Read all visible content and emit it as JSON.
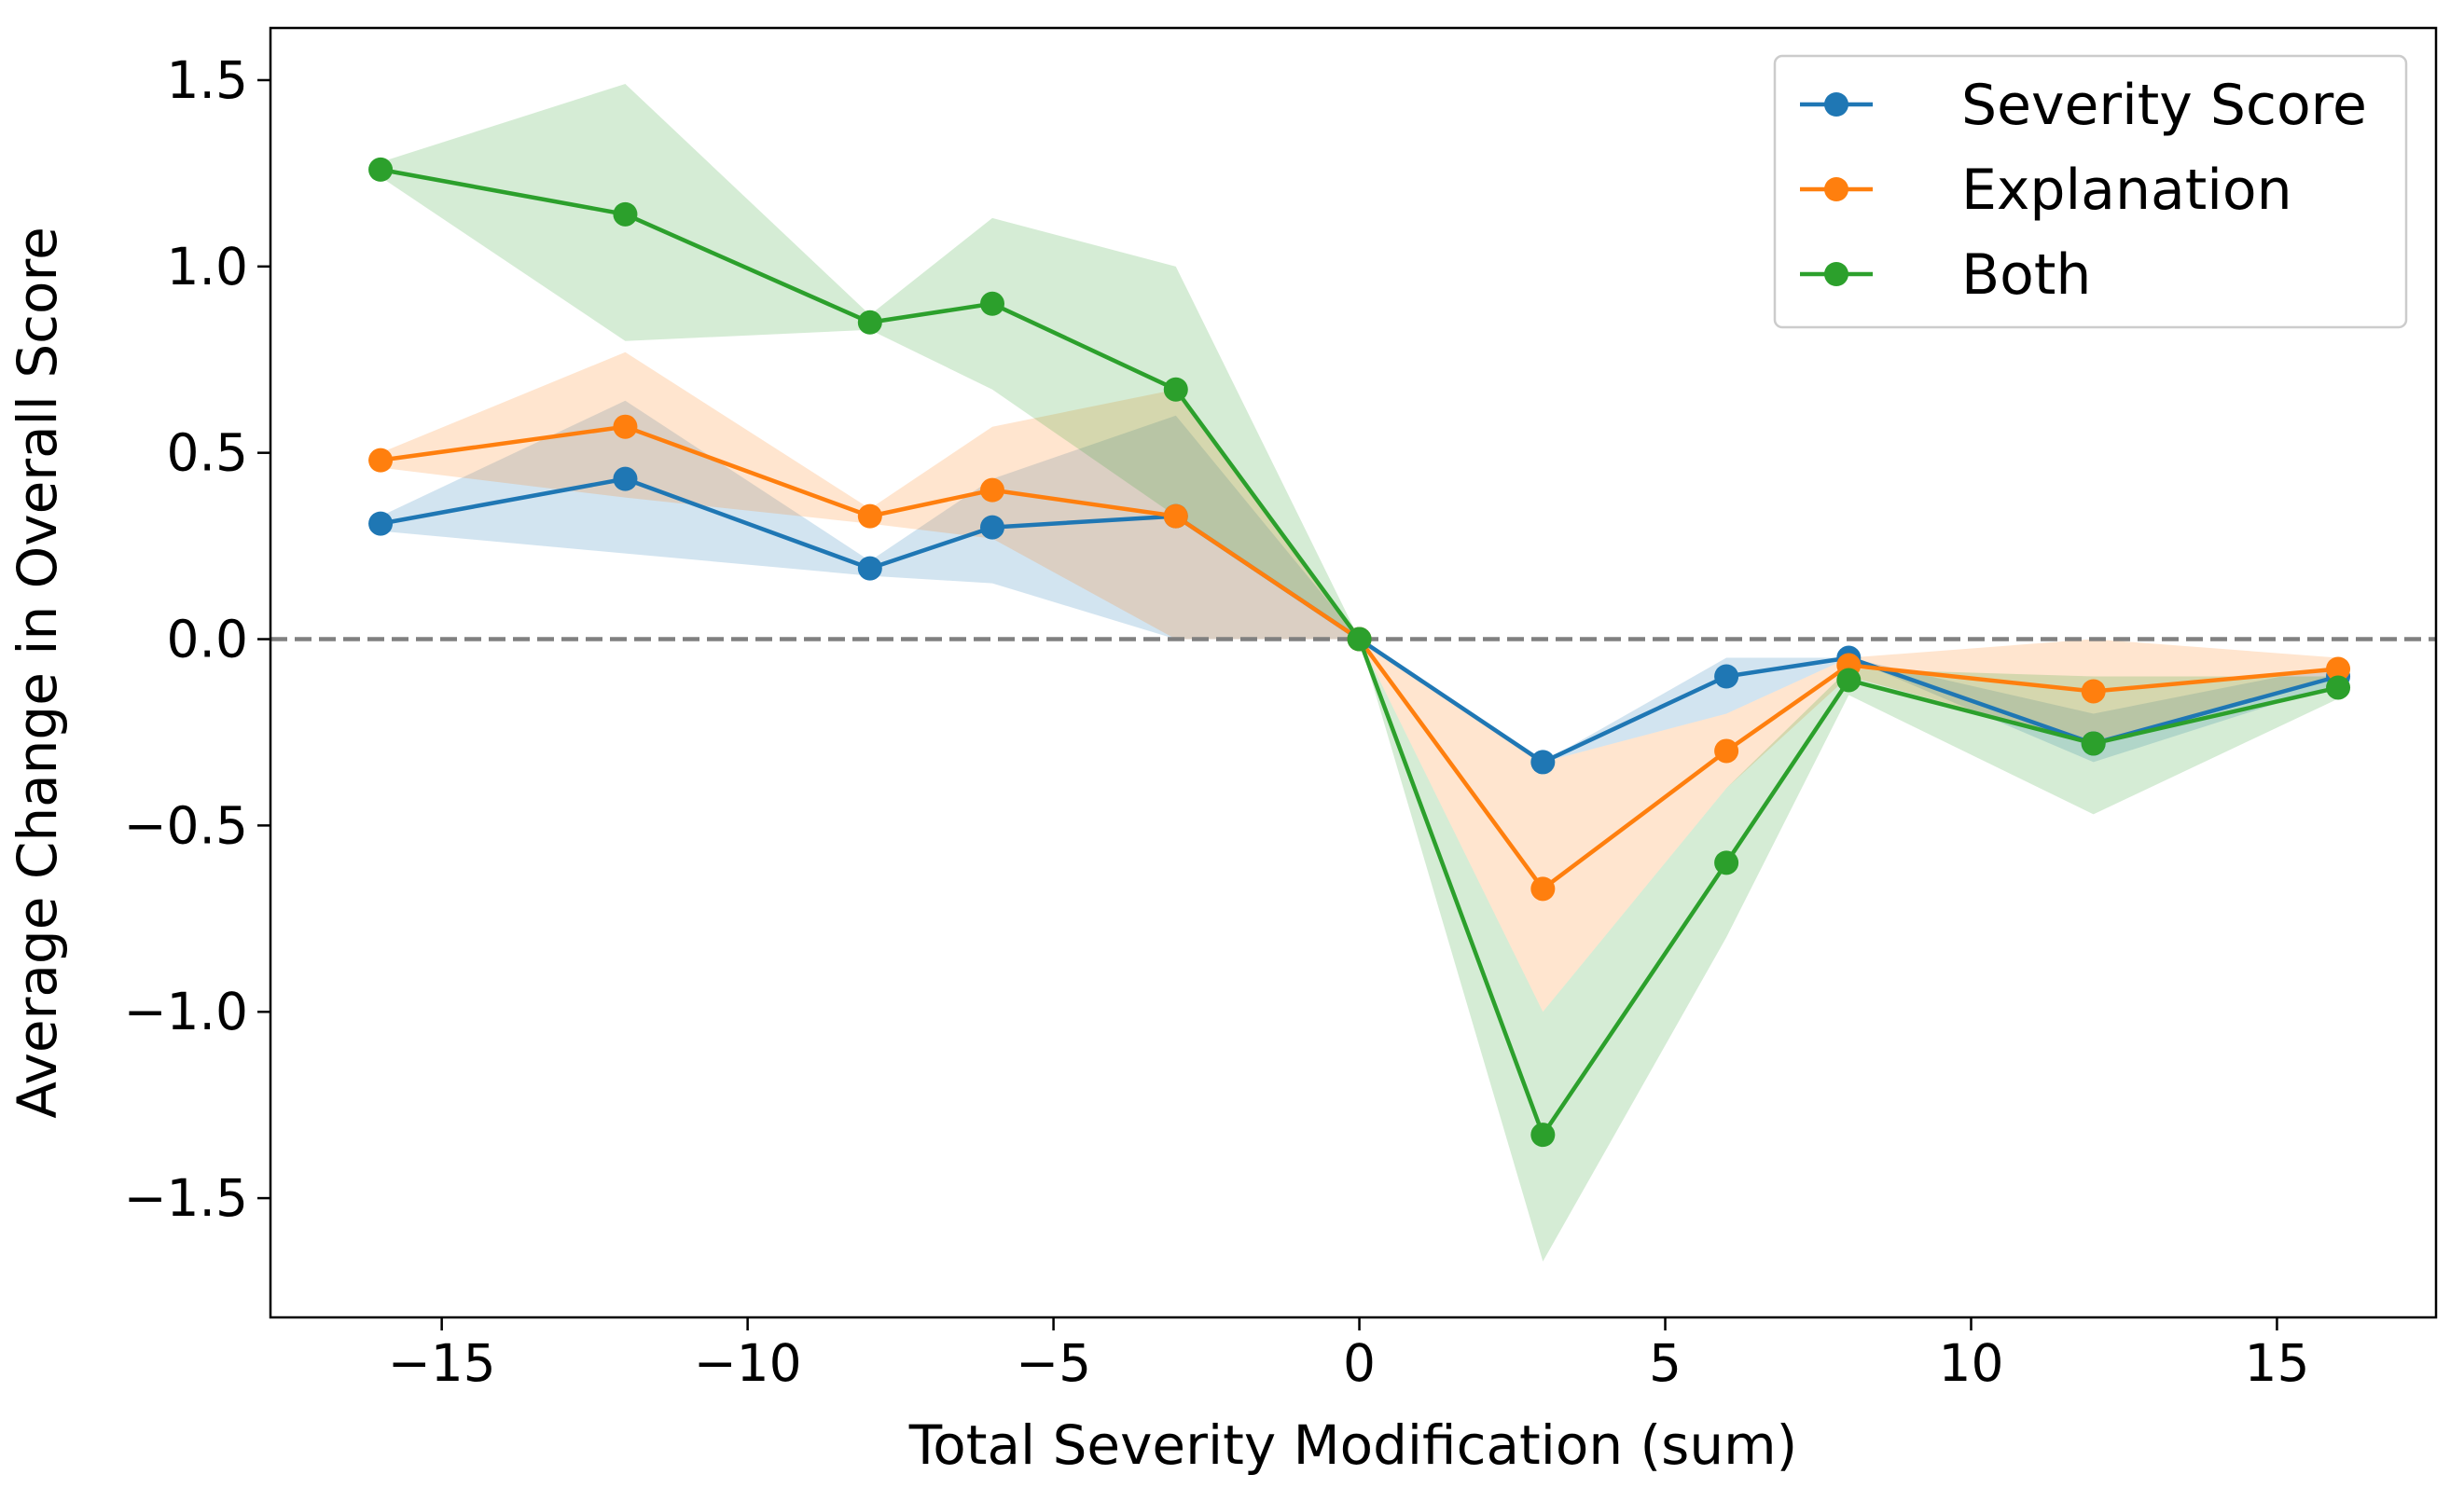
{
  "chart_data": {
    "type": "line",
    "title": "",
    "xlabel": "Total Severity Modification (sum)",
    "ylabel": "Average Change in Overall Score",
    "xlim": [
      -17.8,
      17.6
    ],
    "ylim": [
      -1.82,
      1.64
    ],
    "xticks": [
      -15,
      -10,
      -5,
      0,
      5,
      10,
      15
    ],
    "yticks": [
      -1.5,
      -1.0,
      -0.5,
      0.0,
      0.5,
      1.0,
      1.5
    ],
    "xtick_labels": [
      "−15",
      "−10",
      "−5",
      "0",
      "5",
      "10",
      "15"
    ],
    "ytick_labels": [
      "−1.5",
      "−1.0",
      "−0.5",
      "0.0",
      "0.5",
      "1.0",
      "1.5"
    ],
    "reference_line": {
      "y": 0,
      "style": "dashed",
      "color": "#808080"
    },
    "legend_position": "top-right",
    "x": [
      -16,
      -12,
      -8,
      -6,
      -3,
      0,
      3,
      6,
      8,
      12,
      16
    ],
    "series": [
      {
        "name": "Severity Score",
        "color": "#1f77b4",
        "values": [
          0.31,
          0.43,
          0.19,
          0.3,
          0.33,
          0.0,
          -0.33,
          -0.1,
          -0.05,
          -0.28,
          -0.1
        ],
        "band_upper": [
          0.33,
          0.64,
          0.21,
          0.43,
          0.6,
          0.0,
          -0.33,
          -0.05,
          -0.05,
          -0.2,
          -0.07
        ],
        "band_lower": [
          0.29,
          0.23,
          0.17,
          0.15,
          0.0,
          0.0,
          -0.33,
          -0.2,
          -0.05,
          -0.33,
          -0.12
        ]
      },
      {
        "name": "Explanation",
        "color": "#ff7f0e",
        "values": [
          0.48,
          0.57,
          0.33,
          0.4,
          0.33,
          0.0,
          -0.67,
          -0.3,
          -0.07,
          -0.14,
          -0.08
        ],
        "band_upper": [
          0.5,
          0.77,
          0.35,
          0.57,
          0.67,
          0.0,
          -0.33,
          -0.2,
          -0.05,
          0.0,
          -0.05
        ],
        "band_lower": [
          0.46,
          0.38,
          0.31,
          0.27,
          0.0,
          0.0,
          -1.0,
          -0.4,
          -0.1,
          -0.28,
          -0.1
        ]
      },
      {
        "name": "Both",
        "color": "#2ca02c",
        "values": [
          1.26,
          1.14,
          0.85,
          0.9,
          0.67,
          0.0,
          -1.33,
          -0.6,
          -0.11,
          -0.28,
          -0.13
        ],
        "band_upper": [
          1.28,
          1.49,
          0.87,
          1.13,
          1.0,
          0.0,
          -1.0,
          -0.4,
          -0.08,
          -0.1,
          -0.1
        ],
        "band_lower": [
          1.24,
          0.8,
          0.83,
          0.67,
          0.33,
          0.0,
          -1.67,
          -0.8,
          -0.15,
          -0.47,
          -0.16
        ]
      }
    ]
  }
}
